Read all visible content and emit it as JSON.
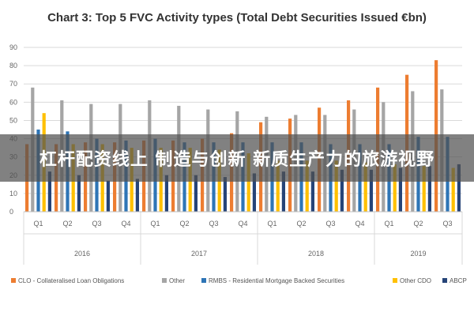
{
  "overlay_text": "杠杆配资线上 制造与创新 新质生产力的旅游视野",
  "chart_data": {
    "type": "bar",
    "title": "Chart 3: Top 5 FVC Activity types (Total Debt Securities Issued €bn)",
    "xlabel": "",
    "ylabel": "",
    "ylim": [
      0,
      90
    ],
    "yticks": [
      0,
      10,
      20,
      30,
      40,
      50,
      60,
      70,
      80,
      90
    ],
    "grid": true,
    "legend_position": "bottom",
    "categories": [
      "Q1",
      "Q2",
      "Q3",
      "Q4",
      "Q1",
      "Q2",
      "Q3",
      "Q4",
      "Q1",
      "Q2",
      "Q3",
      "Q4",
      "Q1",
      "Q2",
      "Q3"
    ],
    "years": [
      {
        "label": "2016",
        "count": 4
      },
      {
        "label": "2017",
        "count": 4
      },
      {
        "label": "2018",
        "count": 4
      },
      {
        "label": "2019",
        "count": 3
      }
    ],
    "series": [
      {
        "name": "CLO - Collateralised Loan Obligations",
        "color": "#ED7D31",
        "values": [
          37,
          37,
          38,
          38,
          39,
          39,
          40,
          43,
          49,
          51,
          57,
          61,
          68,
          75,
          83
        ]
      },
      {
        "name": "Other",
        "color": "#A5A5A5",
        "values": [
          68,
          61,
          59,
          59,
          61,
          58,
          56,
          55,
          52,
          53,
          53,
          56,
          60,
          66,
          67
        ]
      },
      {
        "name": "RMBS - Residential Mortgage Backed Securities",
        "color": "#2E75B6",
        "values": [
          45,
          44,
          40,
          39,
          40,
          38,
          38,
          38,
          38,
          38,
          37,
          37,
          37,
          41,
          41
        ]
      },
      {
        "name": "Other CDO",
        "color": "#FFC000",
        "values": [
          54,
          37,
          37,
          35,
          35,
          35,
          34,
          32,
          28,
          28,
          28,
          27,
          26,
          25,
          24
        ]
      },
      {
        "name": "ABCP",
        "color": "#264478",
        "values": [
          22,
          20,
          17,
          18,
          20,
          20,
          19,
          21,
          22,
          22,
          23,
          23,
          24,
          25,
          26
        ]
      }
    ]
  }
}
